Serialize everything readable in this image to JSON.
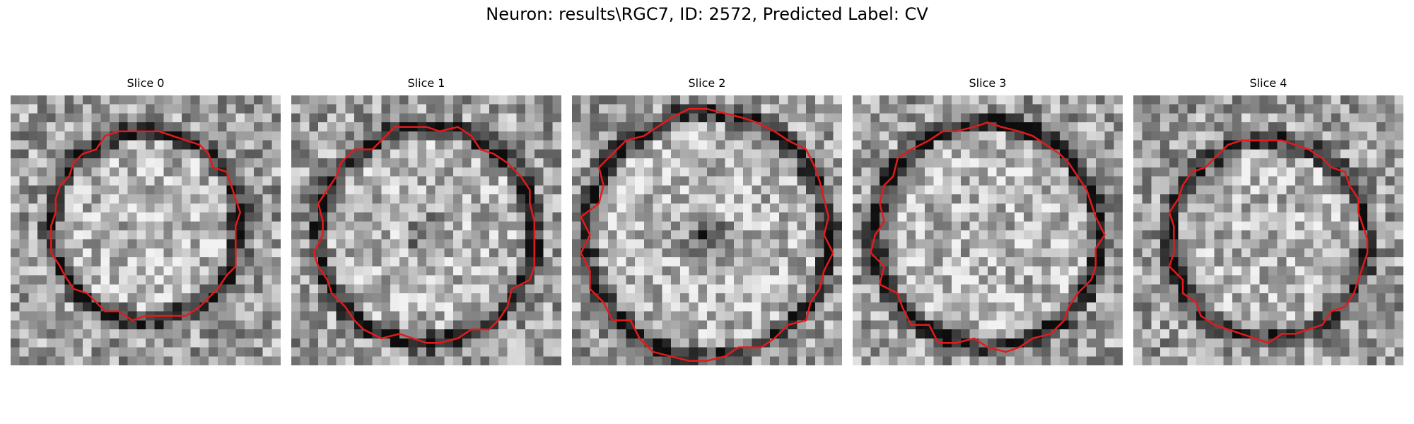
{
  "figure": {
    "title": "Neuron: results\\RGC7, ID: 2572, Predicted Label: CV"
  },
  "panels": [
    {
      "title": "Slice 0"
    },
    {
      "title": "Slice 1"
    },
    {
      "title": "Slice 2"
    },
    {
      "title": "Slice 3"
    },
    {
      "title": "Slice 4"
    }
  ],
  "colors": {
    "contour": "#e41a1c",
    "image_cmap": "grayscale"
  }
}
